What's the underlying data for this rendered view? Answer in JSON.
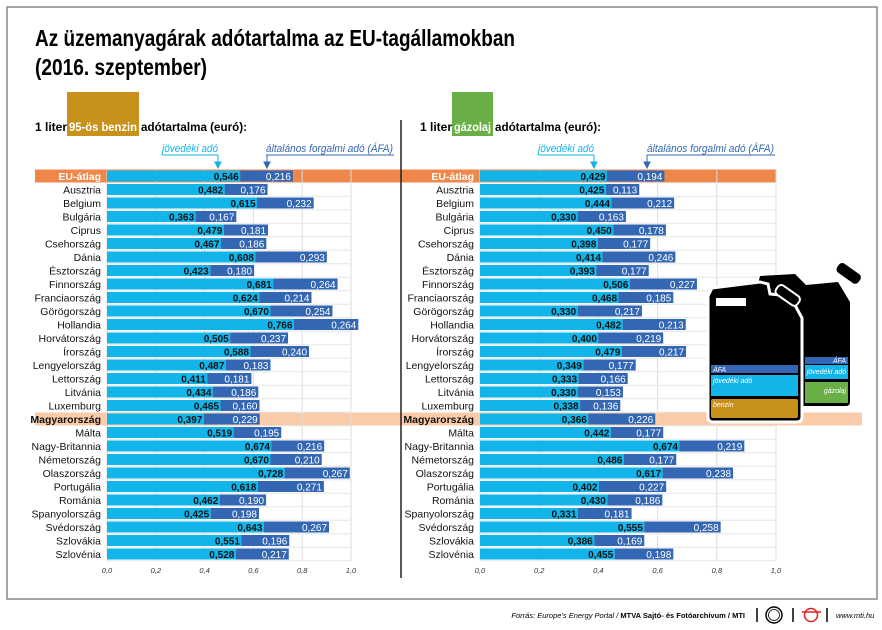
{
  "title_line1": "Az üzemanyagárak adótartalma az EU-tagállamokban",
  "title_line2": "(2016. szeptember)",
  "colors": {
    "excise": "#12B5EA",
    "vat": "#3467B3",
    "benzin": "#C8911A",
    "gazolaj": "#6AAF45",
    "eu_row": "#F0874A",
    "hu_row": "#F9CBA8"
  },
  "chart_data": [
    {
      "type": "bar",
      "stacked": true,
      "orientation": "horizontal",
      "subtitle_pre": "1 liter",
      "subtitle_fuel": "95-ös benzin",
      "subtitle_post": "adótartalma (euró):",
      "legend_excise": "jövedéki adó",
      "legend_vat": "általános forgalmi adó (ÁFA)",
      "xlim": [
        0,
        1.0
      ],
      "xticks": [
        "0,0",
        "0,2",
        "0,4",
        "0,6",
        "0,8",
        "1,0"
      ],
      "grid": true,
      "categories": [
        "EU-átlag",
        "Ausztria",
        "Belgium",
        "Bulgária",
        "Ciprus",
        "Csehország",
        "Dánia",
        "Észtország",
        "Finnország",
        "Franciaország",
        "Görögország",
        "Hollandia",
        "Horvátország",
        "Írország",
        "Lengyelország",
        "Lettország",
        "Litvánia",
        "Luxemburg",
        "Magyarország",
        "Málta",
        "Nagy-Britannia",
        "Németország",
        "Olaszország",
        "Portugália",
        "Románia",
        "Spanyolország",
        "Svédország",
        "Szlovákia",
        "Szlovénia"
      ],
      "series": [
        {
          "name": "jövedéki adó",
          "values": [
            0.546,
            0.482,
            0.615,
            0.363,
            0.479,
            0.467,
            0.608,
            0.423,
            0.681,
            0.624,
            0.67,
            0.766,
            0.505,
            0.588,
            0.487,
            0.411,
            0.434,
            0.465,
            0.397,
            0.519,
            0.674,
            0.67,
            0.728,
            0.618,
            0.462,
            0.425,
            0.643,
            0.551,
            0.528
          ]
        },
        {
          "name": "általános forgalmi adó (ÁFA)",
          "values": [
            0.216,
            0.176,
            0.232,
            0.167,
            0.181,
            0.186,
            0.293,
            0.18,
            0.264,
            0.214,
            0.254,
            0.264,
            0.237,
            0.24,
            0.183,
            0.181,
            0.186,
            0.16,
            0.229,
            0.195,
            0.216,
            0.21,
            0.267,
            0.271,
            0.19,
            0.198,
            0.267,
            0.196,
            0.217
          ]
        }
      ]
    },
    {
      "type": "bar",
      "stacked": true,
      "orientation": "horizontal",
      "subtitle_pre": "1 liter",
      "subtitle_fuel": "gázolaj",
      "subtitle_post": "adótartalma (euró):",
      "legend_excise": "jövedéki adó",
      "legend_vat": "általános forgalmi adó (ÁFA)",
      "xlim": [
        0,
        1.0
      ],
      "xticks": [
        "0,0",
        "0,2",
        "0,4",
        "0,6",
        "0,8",
        "1,0"
      ],
      "grid": true,
      "categories": [
        "EU-átlag",
        "Ausztria",
        "Belgium",
        "Bulgária",
        "Ciprus",
        "Csehország",
        "Dánia",
        "Észtország",
        "Finnország",
        "Franciaország",
        "Görögország",
        "Hollandia",
        "Horvátország",
        "Írország",
        "Lengyelország",
        "Lettország",
        "Litvánia",
        "Luxemburg",
        "Magyarország",
        "Málta",
        "Nagy-Britannia",
        "Németország",
        "Olaszország",
        "Portugália",
        "Románia",
        "Spanyolország",
        "Svédország",
        "Szlovákia",
        "Szlovénia"
      ],
      "series": [
        {
          "name": "jövedéki adó",
          "values": [
            0.429,
            0.425,
            0.444,
            0.33,
            0.45,
            0.398,
            0.414,
            0.393,
            0.506,
            0.468,
            0.33,
            0.482,
            0.4,
            0.479,
            0.349,
            0.333,
            0.33,
            0.338,
            0.366,
            0.442,
            0.674,
            0.486,
            0.617,
            0.402,
            0.43,
            0.331,
            0.555,
            0.386,
            0.455
          ]
        },
        {
          "name": "általános forgalmi adó (ÁFA)",
          "values": [
            0.194,
            0.113,
            0.212,
            0.163,
            0.178,
            0.177,
            0.246,
            0.177,
            0.227,
            0.185,
            0.217,
            0.213,
            0.219,
            0.217,
            0.177,
            0.166,
            0.153,
            0.136,
            0.226,
            0.177,
            0.219,
            0.177,
            0.238,
            0.227,
            0.186,
            0.181,
            0.258,
            0.169,
            0.198
          ]
        }
      ]
    }
  ],
  "legend_cans": {
    "benzin": {
      "vat": "ÁFA",
      "excise": "jövedéki adó",
      "fuel": "benzin"
    },
    "gazolaj": {
      "vat": "ÁFA",
      "excise": "jövedéki adó",
      "fuel": "gázolaj"
    }
  },
  "footer": {
    "source_pre": "Forrás: Europe's Energy Portal / ",
    "source_bold": "MTVA Sajtó- és Fotóarchívum / MTI",
    "logo1": "MTVA",
    "url": "www.mti.hu"
  }
}
